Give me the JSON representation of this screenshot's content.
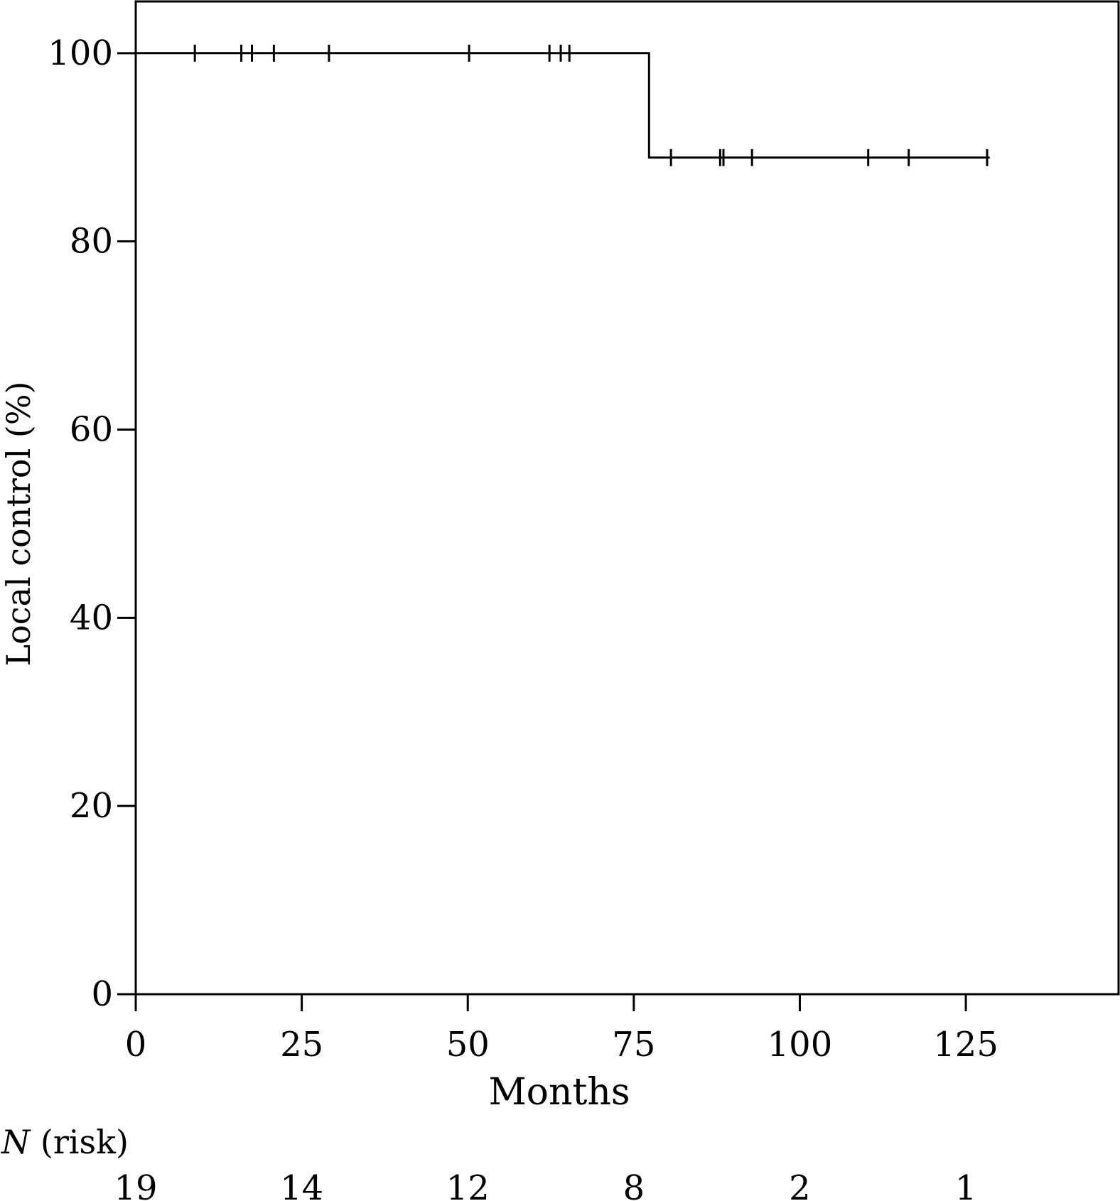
{
  "chart_data": {
    "type": "line",
    "chart_kind": "kaplan-meier",
    "title": "",
    "xlabel": "Months",
    "ylabel": "Local control (%)",
    "xlim": [
      0,
      148
    ],
    "ylim": [
      0,
      105.5
    ],
    "xticks": [
      0,
      25,
      50,
      75,
      100,
      125
    ],
    "yticks": [
      0,
      20,
      40,
      60,
      80,
      100
    ],
    "grid": false,
    "legend": "none",
    "series": [
      {
        "color": "#000000",
        "step_x": [
          0,
          77.3,
          77.3,
          128.6
        ],
        "step_y": [
          100,
          100,
          88.9,
          88.9
        ],
        "censor_times": [
          8.9,
          15.9,
          17.5,
          20.8,
          29.1,
          50.2,
          62.3,
          64.0,
          65.3,
          80.6,
          88.0,
          88.5,
          92.8,
          110.3,
          116.4,
          128.2
        ],
        "censor_values": [
          100,
          100,
          100,
          100,
          100,
          100,
          100,
          100,
          100,
          88.9,
          88.9,
          88.9,
          88.9,
          88.9,
          88.9,
          88.9
        ]
      }
    ],
    "risk_table": {
      "label_italic": "N",
      "label_rest": " (risk)",
      "times": [
        0,
        25,
        50,
        75,
        100,
        125
      ],
      "counts": [
        "19",
        "14",
        "12",
        "8",
        "2",
        "1"
      ]
    }
  }
}
